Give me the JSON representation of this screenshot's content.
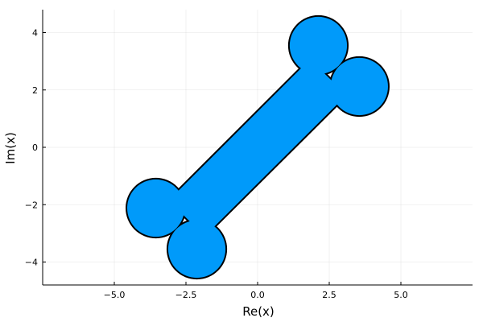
{
  "chart_data": {
    "type": "scatter",
    "title": "",
    "xlabel": "Re(x)",
    "ylabel": "Im(x)",
    "xlim": [
      -7.5,
      7.5
    ],
    "ylim": [
      -4.8,
      4.8
    ],
    "x_ticks": [
      -5.0,
      -2.5,
      0.0,
      2.5,
      5.0
    ],
    "x_tick_labels": [
      "−5.0",
      "−2.5",
      "0.0",
      "2.5",
      "5.0"
    ],
    "y_ticks": [
      -4,
      -2,
      0,
      2,
      4
    ],
    "y_tick_labels": [
      "−4",
      "−2",
      "0",
      "2",
      "4"
    ],
    "grid": true,
    "legend": false,
    "fill_color": "#009AFA",
    "edge_color": "#000000",
    "shape": {
      "name": "bone",
      "shaft_corners": [
        [
          1.83,
          3.07
        ],
        [
          3.1,
          1.82
        ],
        [
          -1.85,
          -3.1
        ],
        [
          -3.1,
          -1.85
        ]
      ],
      "end_circles": [
        {
          "center": [
            2.12,
            3.55
          ],
          "radius": 1.0
        },
        {
          "center": [
            3.55,
            2.12
          ],
          "radius": 1.0
        },
        {
          "center": [
            -3.55,
            -2.12
          ],
          "radius": 1.0
        },
        {
          "center": [
            -2.12,
            -3.55
          ],
          "radius": 1.0
        }
      ]
    }
  }
}
